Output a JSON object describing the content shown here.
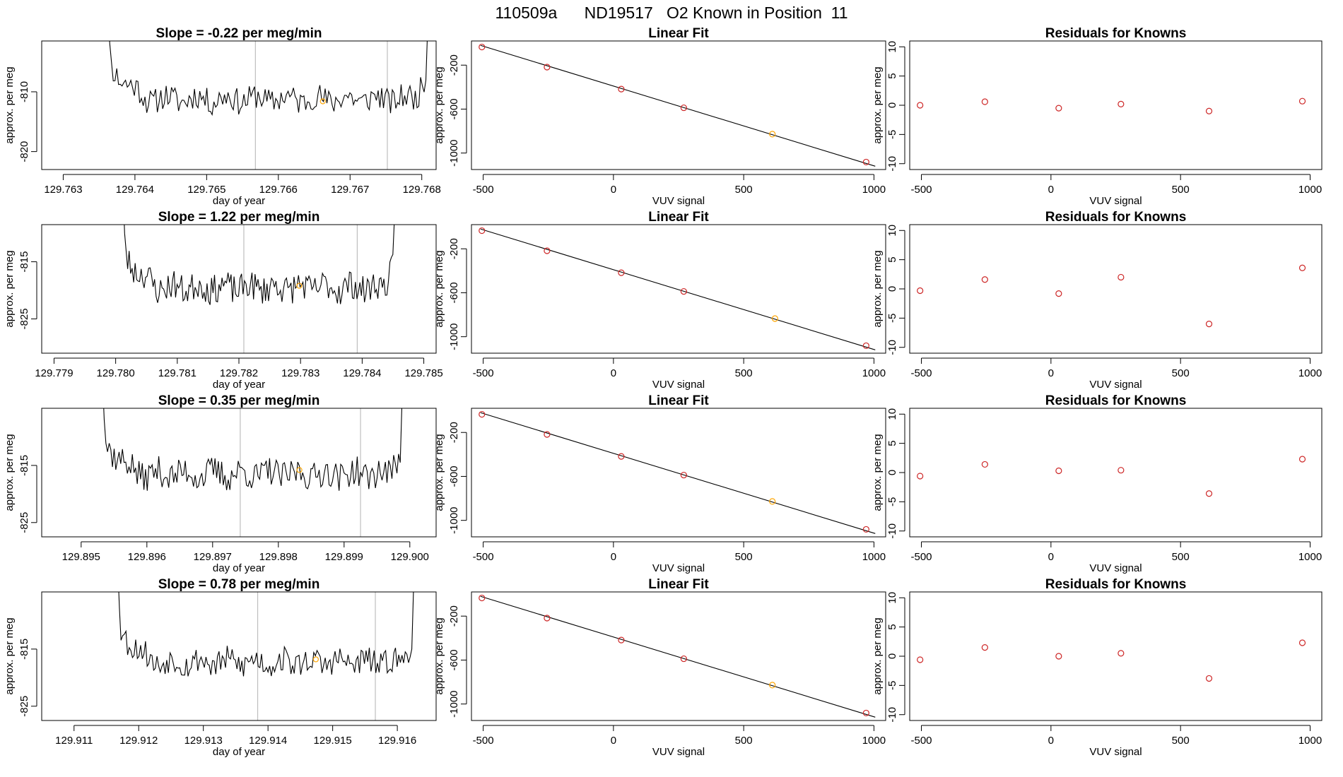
{
  "page_title": "110509a      ND19517   O2 Known in Position  11",
  "colors": {
    "line": "#000000",
    "vline": "#bebebe",
    "known": "#ffa500",
    "resid": "#cd2626"
  },
  "chart_data": [
    {
      "type": "line",
      "row": 0,
      "col": 0,
      "title": "Slope =  -0.22  per meg/min",
      "xlabel": "day of year",
      "ylabel": "approx. per meg",
      "xlim": [
        129.7627,
        129.7682
      ],
      "ylim": [
        -823.0,
        -801.5
      ],
      "xticks": [
        129.763,
        129.764,
        129.765,
        129.766,
        129.767,
        129.768
      ],
      "xtick_labels": [
        "129.763",
        "129.764",
        "129.765",
        "129.766",
        "129.767",
        "129.768"
      ],
      "yticks": [
        -810,
        -820
      ],
      "ytick_labels": [
        "-810",
        "-820"
      ],
      "x_start": 129.7635,
      "x_end": 129.76818,
      "y_mean": -811.2,
      "y_amp": 2.2,
      "seed": 11,
      "vlines": [
        129.76568,
        129.76752
      ],
      "marker": {
        "x": 129.76662,
        "y": -811.6
      }
    },
    {
      "type": "scatter",
      "row": 0,
      "col": 1,
      "title": "Linear Fit",
      "xlabel": "VUV signal",
      "ylabel": "approx. per meg",
      "xlim": [
        -545,
        1045
      ],
      "ylim": [
        -1150,
        20
      ],
      "xticks": [
        -500,
        0,
        500,
        1000
      ],
      "xtick_labels": [
        "-500",
        "0",
        "500",
        "1000"
      ],
      "yticks": [
        -200,
        -600,
        -1000
      ],
      "ytick_labels": [
        "-200",
        "-600",
        "-1000"
      ],
      "fit_line": {
        "x": [
          -510,
          1005
        ],
        "y": [
          -20,
          -1120
        ]
      },
      "points": [
        [
          -505,
          -35
        ],
        [
          -255,
          -218
        ],
        [
          30,
          -418
        ],
        [
          270,
          -588
        ],
        [
          610,
          -828
        ],
        [
          970,
          -1082
        ]
      ],
      "known_index": 4
    },
    {
      "type": "scatter",
      "row": 0,
      "col": 2,
      "title": "Residuals for Knowns",
      "xlabel": "VUV signal",
      "ylabel": "approx. per meg",
      "xlim": [
        -545,
        1045
      ],
      "ylim": [
        -11,
        11
      ],
      "xticks": [
        -500,
        0,
        500,
        1000
      ],
      "xtick_labels": [
        "-500",
        "0",
        "500",
        "1000"
      ],
      "yticks": [
        10,
        5,
        0,
        -5,
        -10
      ],
      "ytick_labels": [
        "10",
        "5",
        "0",
        "-5",
        "-10"
      ],
      "points": [
        [
          -505,
          0.0
        ],
        [
          -255,
          0.6
        ],
        [
          30,
          -0.5
        ],
        [
          270,
          0.2
        ],
        [
          610,
          -1.0
        ],
        [
          970,
          0.7
        ]
      ]
    },
    {
      "type": "line",
      "row": 1,
      "col": 0,
      "title": "Slope =  1.22  per meg/min",
      "xlabel": "day of year",
      "ylabel": "approx. per meg",
      "xlim": [
        129.7788,
        129.7852
      ],
      "ylim": [
        -831.0,
        -808.5
      ],
      "xticks": [
        129.779,
        129.78,
        129.781,
        129.782,
        129.783,
        129.784,
        129.785
      ],
      "xtick_labels": [
        "129.779",
        "129.780",
        "129.781",
        "129.782",
        "129.783",
        "129.784",
        "129.785"
      ],
      "yticks": [
        -815,
        -825
      ],
      "ytick_labels": [
        "-815",
        "-825"
      ],
      "x_start": 129.78,
      "x_end": 129.78462,
      "y_mean": -819.5,
      "y_amp": 2.6,
      "seed": 23,
      "vlines": [
        129.78208,
        129.78392
      ],
      "marker": {
        "x": 129.78298,
        "y": -819.2
      }
    },
    {
      "type": "scatter",
      "row": 1,
      "col": 1,
      "title": "Linear Fit",
      "xlabel": "VUV signal",
      "ylabel": "approx. per meg",
      "xlim": [
        -545,
        1045
      ],
      "ylim": [
        -1150,
        20
      ],
      "xticks": [
        -500,
        0,
        500,
        1000
      ],
      "xtick_labels": [
        "-500",
        "0",
        "500",
        "1000"
      ],
      "yticks": [
        -200,
        -600,
        -1000
      ],
      "ytick_labels": [
        "-200",
        "-600",
        "-1000"
      ],
      "fit_line": {
        "x": [
          -510,
          1005
        ],
        "y": [
          -20,
          -1120
        ]
      },
      "points": [
        [
          -505,
          -35
        ],
        [
          -255,
          -218
        ],
        [
          30,
          -418
        ],
        [
          270,
          -588
        ],
        [
          620,
          -835
        ],
        [
          970,
          -1082
        ]
      ],
      "known_index": 4
    },
    {
      "type": "scatter",
      "row": 1,
      "col": 2,
      "title": "Residuals for Knowns",
      "xlabel": "VUV signal",
      "ylabel": "approx. per meg",
      "xlim": [
        -545,
        1045
      ],
      "ylim": [
        -11,
        11
      ],
      "xticks": [
        -500,
        0,
        500,
        1000
      ],
      "xtick_labels": [
        "-500",
        "0",
        "500",
        "1000"
      ],
      "yticks": [
        10,
        5,
        0,
        -5,
        -10
      ],
      "ytick_labels": [
        "10",
        "5",
        "0",
        "-5",
        "-10"
      ],
      "points": [
        [
          -505,
          -0.3
        ],
        [
          -255,
          1.6
        ],
        [
          30,
          -0.8
        ],
        [
          270,
          2.0
        ],
        [
          610,
          -6.0
        ],
        [
          970,
          3.6
        ]
      ]
    },
    {
      "type": "line",
      "row": 2,
      "col": 0,
      "title": "Slope =  0.35  per meg/min",
      "xlabel": "day of year",
      "ylabel": "approx. per meg",
      "xlim": [
        129.8944,
        129.9004
      ],
      "ylim": [
        -827.5,
        -805.0
      ],
      "xticks": [
        129.895,
        129.896,
        129.897,
        129.898,
        129.899,
        129.9
      ],
      "xtick_labels": [
        "129.895",
        "129.896",
        "129.897",
        "129.898",
        "129.899",
        "129.900"
      ],
      "yticks": [
        -815,
        -825
      ],
      "ytick_labels": [
        "-815",
        "-825"
      ],
      "x_start": 129.8952,
      "x_end": 129.89998,
      "y_mean": -816.5,
      "y_amp": 2.6,
      "seed": 37,
      "vlines": [
        129.89742,
        129.89925
      ],
      "marker": {
        "x": 129.89832,
        "y": -815.8
      }
    },
    {
      "type": "scatter",
      "row": 2,
      "col": 1,
      "title": "Linear Fit",
      "xlabel": "VUV signal",
      "ylabel": "approx. per meg",
      "xlim": [
        -545,
        1045
      ],
      "ylim": [
        -1150,
        20
      ],
      "xticks": [
        -500,
        0,
        500,
        1000
      ],
      "xtick_labels": [
        "-500",
        "0",
        "500",
        "1000"
      ],
      "yticks": [
        -200,
        -600,
        -1000
      ],
      "ytick_labels": [
        "-200",
        "-600",
        "-1000"
      ],
      "fit_line": {
        "x": [
          -510,
          1005
        ],
        "y": [
          -20,
          -1120
        ]
      },
      "points": [
        [
          -505,
          -35
        ],
        [
          -255,
          -218
        ],
        [
          30,
          -418
        ],
        [
          270,
          -588
        ],
        [
          610,
          -828
        ],
        [
          970,
          -1082
        ]
      ],
      "known_index": 4
    },
    {
      "type": "scatter",
      "row": 2,
      "col": 2,
      "title": "Residuals for Knowns",
      "xlabel": "VUV signal",
      "ylabel": "approx. per meg",
      "xlim": [
        -545,
        1045
      ],
      "ylim": [
        -11,
        11
      ],
      "xticks": [
        -500,
        0,
        500,
        1000
      ],
      "xtick_labels": [
        "-500",
        "0",
        "500",
        "1000"
      ],
      "yticks": [
        10,
        5,
        0,
        -5,
        -10
      ],
      "ytick_labels": [
        "10",
        "5",
        "0",
        "-5",
        "-10"
      ],
      "points": [
        [
          -505,
          -0.6
        ],
        [
          -255,
          1.4
        ],
        [
          30,
          0.3
        ],
        [
          270,
          0.4
        ],
        [
          610,
          -3.6
        ],
        [
          970,
          2.3
        ]
      ]
    },
    {
      "type": "line",
      "row": 3,
      "col": 0,
      "title": "Slope =  0.78  per meg/min",
      "xlabel": "day of year",
      "ylabel": "approx. per meg",
      "xlim": [
        129.9105,
        129.9166
      ],
      "ylim": [
        -827.5,
        -805.0
      ],
      "xticks": [
        129.911,
        129.912,
        129.913,
        129.914,
        129.915,
        129.916
      ],
      "xtick_labels": [
        "129.911",
        "129.912",
        "129.913",
        "129.914",
        "129.915",
        "129.916"
      ],
      "yticks": [
        -815,
        -825
      ],
      "ytick_labels": [
        "-815",
        "-825"
      ],
      "x_start": 129.91155,
      "x_end": 129.91635,
      "y_mean": -817.3,
      "y_amp": 2.3,
      "seed": 53,
      "vlines": [
        129.91384,
        129.91566
      ],
      "marker": {
        "x": 129.91474,
        "y": -816.8
      }
    },
    {
      "type": "scatter",
      "row": 3,
      "col": 1,
      "title": "Linear Fit",
      "xlabel": "VUV signal",
      "ylabel": "approx. per meg",
      "xlim": [
        -545,
        1045
      ],
      "ylim": [
        -1150,
        20
      ],
      "xticks": [
        -500,
        0,
        500,
        1000
      ],
      "xtick_labels": [
        "-500",
        "0",
        "500",
        "1000"
      ],
      "yticks": [
        -200,
        -600,
        -1000
      ],
      "ytick_labels": [
        "-200",
        "-600",
        "-1000"
      ],
      "fit_line": {
        "x": [
          -510,
          1005
        ],
        "y": [
          -20,
          -1120
        ]
      },
      "points": [
        [
          -505,
          -35
        ],
        [
          -255,
          -218
        ],
        [
          30,
          -418
        ],
        [
          270,
          -588
        ],
        [
          610,
          -828
        ],
        [
          970,
          -1082
        ]
      ],
      "known_index": 4
    },
    {
      "type": "scatter",
      "row": 3,
      "col": 2,
      "title": "Residuals for Knowns",
      "xlabel": "VUV signal",
      "ylabel": "approx. per meg",
      "xlim": [
        -545,
        1045
      ],
      "ylim": [
        -11,
        11
      ],
      "xticks": [
        -500,
        0,
        500,
        1000
      ],
      "xtick_labels": [
        "-500",
        "0",
        "500",
        "1000"
      ],
      "yticks": [
        10,
        5,
        0,
        -5,
        -10
      ],
      "ytick_labels": [
        "10",
        "5",
        "0",
        "-5",
        "-10"
      ],
      "points": [
        [
          -505,
          -0.6
        ],
        [
          -255,
          1.5
        ],
        [
          30,
          0.0
        ],
        [
          270,
          0.5
        ],
        [
          610,
          -3.8
        ],
        [
          970,
          2.3
        ]
      ]
    }
  ]
}
